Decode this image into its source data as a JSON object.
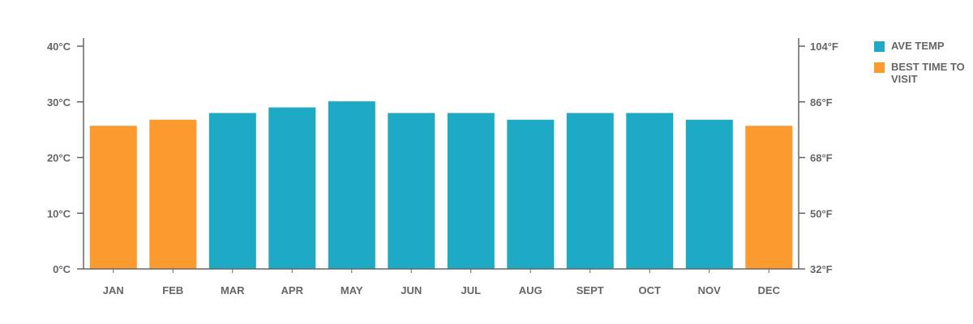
{
  "chart_data": {
    "type": "bar",
    "categories": [
      "JAN",
      "FEB",
      "MAR",
      "APR",
      "MAY",
      "JUN",
      "JUL",
      "AUG",
      "SEPT",
      "OCT",
      "NOV",
      "DEC"
    ],
    "values": [
      25.7,
      26.8,
      28,
      29,
      30.1,
      28,
      28,
      26.8,
      28,
      28,
      26.8,
      25.7
    ],
    "highlighted": [
      true,
      true,
      false,
      false,
      false,
      false,
      false,
      false,
      false,
      false,
      false,
      true
    ],
    "ylim": [
      0,
      40
    ],
    "left_ticks": [
      "0°C",
      "10°C",
      "20°C",
      "30°C",
      "40°C"
    ],
    "right_ticks": [
      "32°F",
      "50°F",
      "68°F",
      "86°F",
      "104°F"
    ],
    "legend": [
      {
        "label": "AVE TEMP",
        "color": "#1eaac4"
      },
      {
        "label": "BEST TIME TO VISIT",
        "color": "#fb9a2f"
      }
    ],
    "colors": {
      "normal": "#1eaac4",
      "highlight": "#fb9a2f",
      "axis": "#666666"
    }
  }
}
